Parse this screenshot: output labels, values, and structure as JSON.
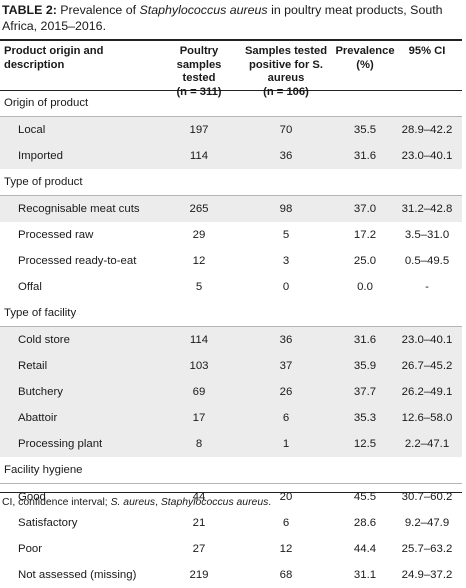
{
  "caption": {
    "label": "TABLE 2:",
    "pre": " Prevalence of ",
    "italic": "Staphylococcus aureus",
    "post": " in poultry meat products, South Africa, 2015–2016."
  },
  "header": {
    "col0": "Product origin and description",
    "col1_line1": "Poultry samples tested",
    "col1_line2": "(n = 311)",
    "col2_line1": "Samples tested positive for S. aureus",
    "col2_line2": "(n = 106)",
    "col3_line1": "Prevalence",
    "col3_line2": "(%)",
    "col4": "95% CI"
  },
  "rows": [
    {
      "type": "group",
      "label": "Origin of product",
      "shaded": false
    },
    {
      "type": "data",
      "label": "Local",
      "tested": "197",
      "positive": "70",
      "prevalence": "35.5",
      "ci": "28.9–42.2",
      "shaded": true
    },
    {
      "type": "data",
      "label": "Imported",
      "tested": "114",
      "positive": "36",
      "prevalence": "31.6",
      "ci": "23.0–40.1",
      "shaded": true
    },
    {
      "type": "group",
      "label": "Type of product",
      "shaded": false
    },
    {
      "type": "data",
      "label": "Recognisable meat cuts",
      "tested": "265",
      "positive": "98",
      "prevalence": "37.0",
      "ci": "31.2–42.8",
      "shaded": true
    },
    {
      "type": "data",
      "label": "Processed raw",
      "tested": "29",
      "positive": "5",
      "prevalence": "17.2",
      "ci": "3.5–31.0",
      "shaded": false
    },
    {
      "type": "data",
      "label": "Processed ready-to-eat",
      "tested": "12",
      "positive": "3",
      "prevalence": "25.0",
      "ci": "0.5–49.5",
      "shaded": false
    },
    {
      "type": "data",
      "label": "Offal",
      "tested": "5",
      "positive": "0",
      "prevalence": "0.0",
      "ci": "-",
      "shaded": false
    },
    {
      "type": "group",
      "label": "Type of facility",
      "shaded": false
    },
    {
      "type": "data",
      "label": "Cold store",
      "tested": "114",
      "positive": "36",
      "prevalence": "31.6",
      "ci": "23.0–40.1",
      "shaded": true
    },
    {
      "type": "data",
      "label": "Retail",
      "tested": "103",
      "positive": "37",
      "prevalence": "35.9",
      "ci": "26.7–45.2",
      "shaded": true
    },
    {
      "type": "data",
      "label": "Butchery",
      "tested": "69",
      "positive": "26",
      "prevalence": "37.7",
      "ci": "26.2–49.1",
      "shaded": true
    },
    {
      "type": "data",
      "label": "Abattoir",
      "tested": "17",
      "positive": "6",
      "prevalence": "35.3",
      "ci": "12.6–58.0",
      "shaded": true
    },
    {
      "type": "data",
      "label": "Processing plant",
      "tested": "8",
      "positive": "1",
      "prevalence": "12.5",
      "ci": "2.2–47.1",
      "shaded": true
    },
    {
      "type": "group",
      "label": "Facility hygiene",
      "shaded": false
    },
    {
      "type": "data",
      "label": "Good",
      "tested": "44",
      "positive": "20",
      "prevalence": "45.5",
      "ci": "30.7–60.2",
      "shaded": false
    },
    {
      "type": "data",
      "label": "Satisfactory",
      "tested": "21",
      "positive": "6",
      "prevalence": "28.6",
      "ci": "9.2–47.9",
      "shaded": false
    },
    {
      "type": "data",
      "label": "Poor",
      "tested": "27",
      "positive": "12",
      "prevalence": "44.4",
      "ci": "25.7–63.2",
      "shaded": false
    },
    {
      "type": "data",
      "label": "Not assessed (missing)",
      "tested": "219",
      "positive": "68",
      "prevalence": "31.1",
      "ci": "24.9–37.2",
      "shaded": false
    }
  ],
  "footnote": {
    "pre": "CI, confidence interval; ",
    "italic1": "S. aureus",
    "mid": ", ",
    "italic2": "Staphylococcus aureus",
    "post": "."
  }
}
